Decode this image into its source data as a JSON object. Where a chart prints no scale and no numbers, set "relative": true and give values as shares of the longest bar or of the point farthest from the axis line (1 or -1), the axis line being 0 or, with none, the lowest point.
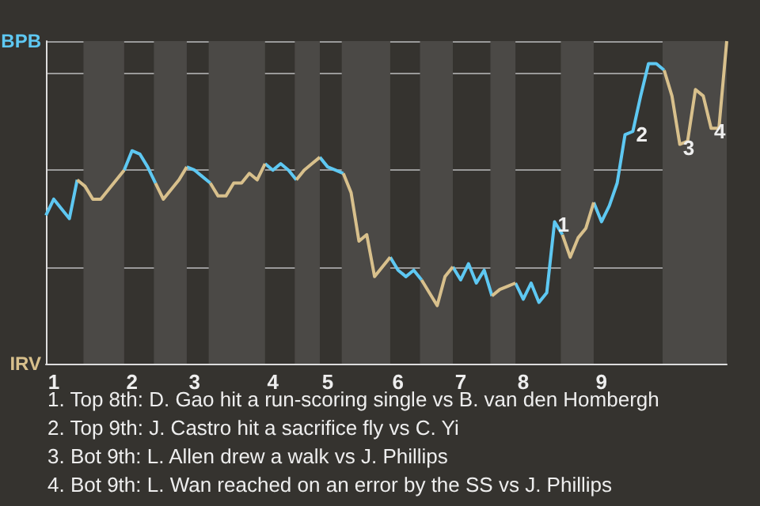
{
  "chart_data": {
    "type": "line",
    "categories": [
      null,
      "1",
      null,
      null,
      null,
      null,
      null,
      null,
      null,
      null,
      null,
      "2",
      null,
      null,
      null,
      null,
      null,
      null,
      null,
      "3",
      null,
      null,
      null,
      null,
      null,
      null,
      null,
      null,
      null,
      "4",
      null,
      null,
      null,
      null,
      null,
      null,
      "5",
      null,
      null,
      null,
      null,
      null,
      null,
      null,
      null,
      "6",
      null,
      null,
      null,
      null,
      null,
      null,
      null,
      "7",
      null,
      null,
      null,
      null,
      null,
      null,
      null,
      "8",
      null,
      null,
      null,
      null,
      null,
      null,
      null,
      null,
      null,
      "9",
      null,
      null,
      null,
      null,
      null,
      null,
      null,
      null,
      null,
      null,
      null,
      null,
      null,
      null,
      null,
      null
    ],
    "relative": true,
    "series": [
      {
        "color": "#5ec8f2",
        "values": [
          0.46,
          0.51,
          0.48,
          0.45,
          0.57,
          null,
          null,
          null,
          null,
          null,
          0.6,
          0.66,
          0.65,
          0.61,
          0.56,
          null,
          null,
          null,
          0.61,
          0.6,
          0.58,
          0.56,
          null,
          null,
          null,
          null,
          null,
          null,
          0.62,
          0.6,
          0.62,
          0.6,
          0.57,
          null,
          null,
          0.64,
          0.61,
          0.6,
          0.59,
          null,
          null,
          null,
          null,
          null,
          0.33,
          0.29,
          0.27,
          0.29,
          0.26,
          null,
          null,
          null,
          0.3,
          0.26,
          0.31,
          0.25,
          0.29,
          0.21,
          null,
          null,
          0.25,
          0.2,
          0.25,
          0.19,
          0.22,
          0.44,
          0.4,
          null,
          null,
          null,
          0.5,
          0.44,
          0.49,
          0.56,
          0.71,
          0.72,
          0.83,
          0.93,
          0.93,
          0.91,
          null,
          null,
          null,
          null,
          null,
          null,
          null,
          null
        ]
      },
      {
        "color": "#d8c08c",
        "values": [
          null,
          null,
          null,
          null,
          0.57,
          0.55,
          0.51,
          0.51,
          0.54,
          0.57,
          0.6,
          null,
          null,
          null,
          0.56,
          0.51,
          0.54,
          0.57,
          0.61,
          null,
          null,
          0.56,
          0.52,
          0.52,
          0.56,
          0.56,
          0.59,
          0.57,
          0.62,
          null,
          null,
          null,
          0.57,
          0.6,
          0.62,
          0.64,
          null,
          null,
          0.59,
          0.53,
          0.38,
          0.4,
          0.27,
          0.3,
          0.33,
          null,
          null,
          null,
          0.26,
          0.22,
          0.18,
          0.27,
          0.3,
          null,
          null,
          null,
          null,
          0.21,
          0.23,
          0.24,
          0.25,
          null,
          null,
          null,
          null,
          null,
          0.4,
          0.33,
          0.39,
          0.42,
          0.5,
          null,
          null,
          null,
          null,
          null,
          null,
          null,
          null,
          0.91,
          0.83,
          0.68,
          0.69,
          0.85,
          0.83,
          0.73,
          0.73,
          1.0
        ]
      }
    ],
    "grid": "y",
    "annotations": [
      "BPB",
      "IRV",
      {
        "text": "1",
        "y": 0.44
      },
      {
        "text": "2",
        "y": 0.72
      },
      {
        "text": "3",
        "y": 0.68
      },
      {
        "text": "4",
        "y": 0.73
      },
      "1. Top 8th: D. Gao hit a run-scoring single vs B. van den Hombergh",
      "2. Top 9th: J. Castro hit a sacrifice fly vs C. Yi",
      "3. Bot 9th: L. Allen drew a walk vs J. Phillips",
      "4. Bot 9th: L. Wan reached on an error by the SS vs J. Phillips"
    ]
  }
}
